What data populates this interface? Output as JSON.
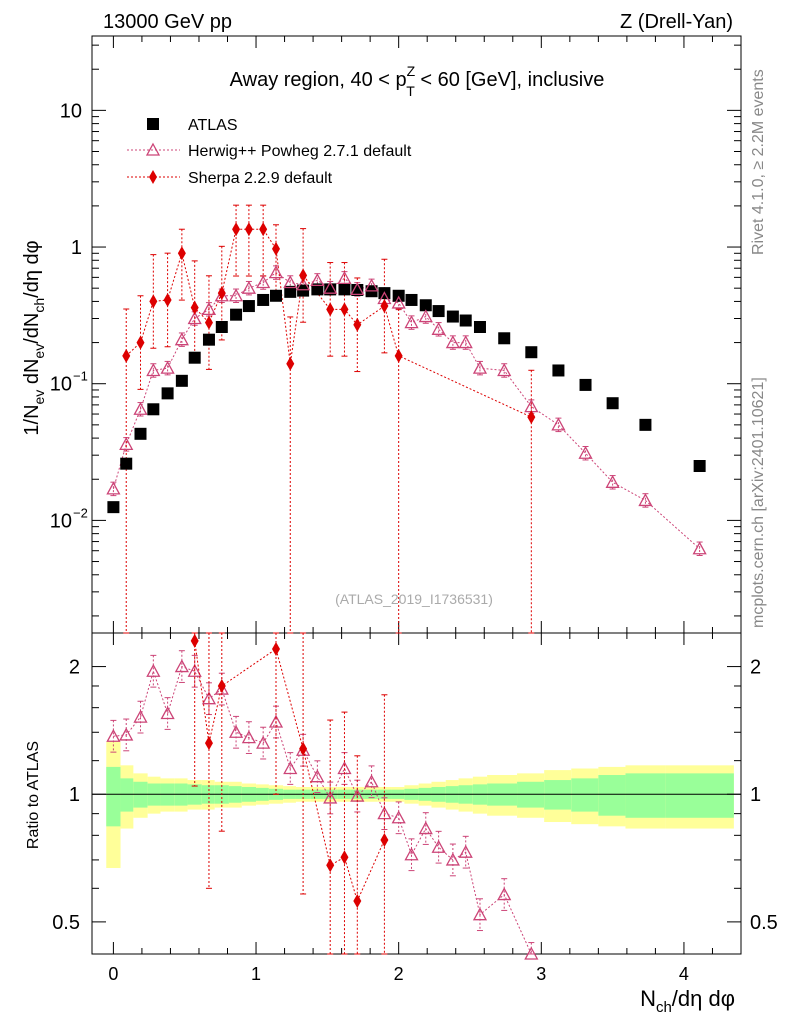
{
  "header": {
    "left": "13000 GeV pp",
    "right": "Z (Drell-Yan)"
  },
  "side": {
    "rivet": "Rivet 4.1.0, ≥ 2.2M events",
    "mcplots": "mcplots.cern.ch [arXiv:2401.10621]"
  },
  "analysis_id": "(ATLAS_2019_I1736531)",
  "colors": {
    "atlas": "#000000",
    "herwig": "#cc4477",
    "sherpa": "#dd0000",
    "band_inner": "#99ff99",
    "band_outer": "#ffff99"
  },
  "chart_data": [
    {
      "type": "scatter",
      "title": "Away region, 40 < p_T^Z < 60 [GeV], inclusive",
      "title_parts": {
        "prefix": "Away region, 40 < p",
        "sup": "Z",
        "sub": "T",
        "suffix": " < 60 [GeV], inclusive"
      },
      "ylabel": "1/N_ev dN_ev/dN_ch/dη dφ",
      "xlabel": "N_ch/dη dφ",
      "yscale": "log",
      "xlim": [
        -0.15,
        4.4
      ],
      "ylim": [
        0.0015,
        35
      ],
      "ytick_labels": [
        "10^-2",
        "10^-1",
        "1",
        "10"
      ],
      "legend_position": "top-left",
      "series": [
        {
          "name": "ATLAS",
          "marker": "square",
          "x": [
            0.0,
            0.09,
            0.19,
            0.28,
            0.38,
            0.48,
            0.57,
            0.67,
            0.76,
            0.86,
            0.95,
            1.05,
            1.14,
            1.24,
            1.33,
            1.43,
            1.52,
            1.62,
            1.71,
            1.81,
            1.9,
            2.0,
            2.09,
            2.19,
            2.28,
            2.38,
            2.47,
            2.57,
            2.74,
            2.93,
            3.12,
            3.31,
            3.5,
            3.73,
            4.11
          ],
          "values": [
            0.0125,
            0.026,
            0.043,
            0.065,
            0.085,
            0.105,
            0.155,
            0.21,
            0.26,
            0.32,
            0.37,
            0.41,
            0.44,
            0.47,
            0.48,
            0.49,
            0.49,
            0.49,
            0.485,
            0.475,
            0.46,
            0.44,
            0.41,
            0.375,
            0.34,
            0.31,
            0.29,
            0.26,
            0.215,
            0.17,
            0.125,
            0.098,
            0.072,
            0.05,
            0.025
          ]
        },
        {
          "name": "Herwig++ Powheg 2.7.1 default",
          "marker": "triangle-open",
          "x": [
            0.0,
            0.09,
            0.19,
            0.28,
            0.38,
            0.48,
            0.57,
            0.67,
            0.76,
            0.86,
            0.95,
            1.05,
            1.14,
            1.24,
            1.33,
            1.43,
            1.52,
            1.62,
            1.71,
            1.81,
            1.9,
            2.0,
            2.09,
            2.19,
            2.28,
            2.38,
            2.47,
            2.57,
            2.74,
            2.93,
            3.12,
            3.31,
            3.5,
            3.73,
            4.11
          ],
          "values": [
            0.017,
            0.036,
            0.065,
            0.125,
            0.13,
            0.21,
            0.3,
            0.35,
            0.44,
            0.44,
            0.5,
            0.55,
            0.65,
            0.55,
            0.53,
            0.57,
            0.5,
            0.59,
            0.49,
            0.52,
            0.42,
            0.39,
            0.28,
            0.31,
            0.25,
            0.2,
            0.2,
            0.13,
            0.125,
            0.068,
            0.05,
            0.031,
            0.019,
            0.014,
            0.0062
          ]
        },
        {
          "name": "Sherpa 2.2.9 default",
          "marker": "diamond",
          "x": [
            0.09,
            0.19,
            0.28,
            0.38,
            0.48,
            0.57,
            0.67,
            0.76,
            0.86,
            0.95,
            1.05,
            1.14,
            1.24,
            1.33,
            1.52,
            1.62,
            1.71,
            1.9,
            2.0,
            2.93
          ],
          "values": [
            0.16,
            0.2,
            0.4,
            0.41,
            0.9,
            0.36,
            0.28,
            0.46,
            1.35,
            1.35,
            1.35,
            0.97,
            0.14,
            0.62,
            0.35,
            0.35,
            0.27,
            0.37,
            0.16,
            0.057
          ]
        }
      ]
    },
    {
      "type": "scatter",
      "ylabel": "Ratio to ATLAS",
      "xlabel": "N_ch/dη dφ",
      "yscale": "log",
      "xlim": [
        -0.15,
        4.4
      ],
      "ylim": [
        0.42,
        2.4
      ],
      "ytick_labels": [
        "0.5",
        "1",
        "2"
      ],
      "xtick_labels": [
        "0",
        "1",
        "2",
        "3",
        "4"
      ],
      "reference_line": 1,
      "band_edges": [
        -0.05,
        0.05,
        0.14,
        0.24,
        0.33,
        0.43,
        0.52,
        0.62,
        0.71,
        0.81,
        0.9,
        1.0,
        1.09,
        1.19,
        1.28,
        1.38,
        1.47,
        1.57,
        1.66,
        1.76,
        1.85,
        1.95,
        2.04,
        2.14,
        2.23,
        2.33,
        2.42,
        2.52,
        2.62,
        2.83,
        3.02,
        3.21,
        3.4,
        3.59,
        3.87,
        4.35
      ],
      "band_inner_half": [
        0.16,
        0.09,
        0.07,
        0.06,
        0.06,
        0.06,
        0.055,
        0.05,
        0.05,
        0.045,
        0.04,
        0.035,
        0.03,
        0.025,
        0.025,
        0.025,
        0.025,
        0.025,
        0.025,
        0.025,
        0.025,
        0.025,
        0.03,
        0.035,
        0.04,
        0.045,
        0.05,
        0.055,
        0.06,
        0.07,
        0.08,
        0.09,
        0.11,
        0.12,
        0.12
      ],
      "band_outer_half": [
        0.33,
        0.17,
        0.12,
        0.1,
        0.09,
        0.09,
        0.08,
        0.08,
        0.07,
        0.07,
        0.06,
        0.055,
        0.05,
        0.045,
        0.04,
        0.04,
        0.04,
        0.04,
        0.04,
        0.04,
        0.04,
        0.04,
        0.05,
        0.06,
        0.07,
        0.08,
        0.09,
        0.1,
        0.11,
        0.12,
        0.14,
        0.15,
        0.16,
        0.17,
        0.17
      ],
      "series": [
        {
          "name": "Herwig++ Powheg 2.7.1 default",
          "marker": "triangle-open",
          "x": [
            0.0,
            0.09,
            0.19,
            0.28,
            0.38,
            0.48,
            0.57,
            0.67,
            0.76,
            0.86,
            0.95,
            1.05,
            1.14,
            1.24,
            1.33,
            1.43,
            1.52,
            1.62,
            1.71,
            1.81,
            1.9,
            2.0,
            2.09,
            2.19,
            2.28,
            2.38,
            2.47,
            2.57,
            2.74,
            2.93
          ],
          "values": [
            1.37,
            1.38,
            1.52,
            1.95,
            1.55,
            2.0,
            1.95,
            1.68,
            1.77,
            1.4,
            1.36,
            1.32,
            1.48,
            1.15,
            1.27,
            1.1,
            0.98,
            1.15,
            0.99,
            1.07,
            0.9,
            0.88,
            0.72,
            0.83,
            0.75,
            0.7,
            0.73,
            0.52,
            0.58,
            0.41
          ]
        },
        {
          "name": "Sherpa 2.2.9 default",
          "marker": "diamond",
          "x": [
            0.57,
            0.67,
            0.76,
            1.14,
            1.33,
            1.52,
            1.62,
            1.71,
            1.9
          ],
          "values": [
            2.3,
            1.32,
            1.8,
            2.2,
            1.28,
            0.68,
            0.71,
            0.56,
            0.78
          ]
        }
      ]
    }
  ]
}
